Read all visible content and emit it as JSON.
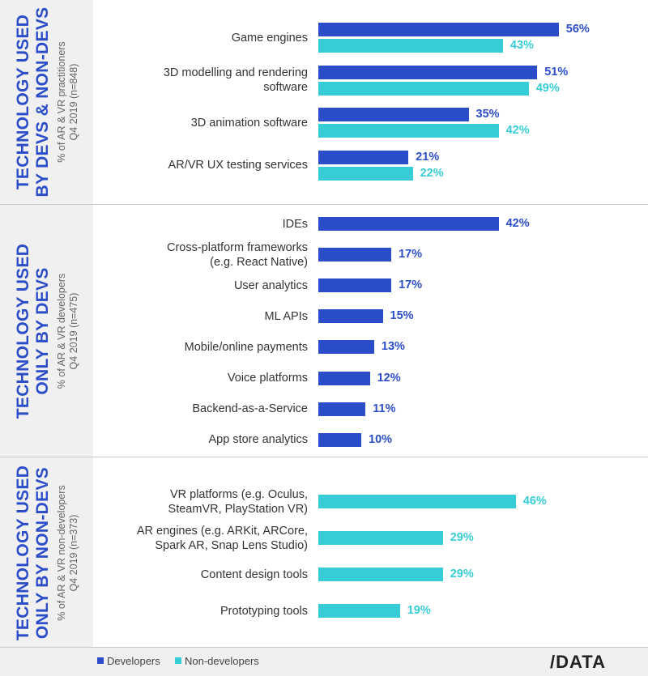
{
  "colors": {
    "developers": "#2c4dc8",
    "non_developers": "#36cdd6"
  },
  "panels": [
    {
      "title_line1": "TECHNOLOGY USED",
      "title_line2": "BY DEVS & NON-DEVS",
      "sub_line1": "% of AR & VR practitioners",
      "sub_line2": "Q4 2019 (n=848)"
    },
    {
      "title_line1": "TECHNOLOGY USED",
      "title_line2": "ONLY BY DEVS",
      "sub_line1": "% of AR & VR developers",
      "sub_line2": "Q4 2019 (n=475)"
    },
    {
      "title_line1": "TECHNOLOGY USED",
      "title_line2": "ONLY BY NON-DEVS",
      "sub_line1": "% of AR & VR non-developers",
      "sub_line2": "Q4 2019 (n=373)"
    }
  ],
  "legend": {
    "developers": "Developers",
    "non_developers": "Non-developers"
  },
  "logo": "/DATA",
  "chart_data": [
    {
      "type": "bar",
      "orientation": "horizontal",
      "title": "TECHNOLOGY USED BY DEVS & NON-DEVS",
      "categories": [
        "Game engines",
        "3D modelling and rendering software",
        "3D animation software",
        "AR/VR UX testing services"
      ],
      "series": [
        {
          "name": "Developers",
          "values": [
            56,
            51,
            35,
            21
          ],
          "labels": [
            "56%",
            "51%",
            "35%",
            "21%"
          ]
        },
        {
          "name": "Non-developers",
          "values": [
            43,
            49,
            42,
            22
          ],
          "labels": [
            "43%",
            "49%",
            "42%",
            "22%"
          ]
        }
      ]
    },
    {
      "type": "bar",
      "orientation": "horizontal",
      "title": "TECHNOLOGY USED ONLY BY DEVS",
      "categories": [
        "IDEs",
        "Cross-platform frameworks (e.g. React Native)",
        "User analytics",
        "ML APIs",
        "Mobile/online payments",
        "Voice platforms",
        "Backend-as-a-Service",
        "App store analytics"
      ],
      "series": [
        {
          "name": "Developers",
          "values": [
            42,
            17,
            17,
            15,
            13,
            12,
            11,
            10
          ],
          "labels": [
            "42%",
            "17%",
            "17%",
            "15%",
            "13%",
            "12%",
            "11%",
            "10%"
          ]
        }
      ]
    },
    {
      "type": "bar",
      "orientation": "horizontal",
      "title": "TECHNOLOGY USED ONLY BY NON-DEVS",
      "categories": [
        "VR platforms (e.g. Oculus, SteamVR, PlayStation VR)",
        "AR engines (e.g. ARKit, ARCore, Spark AR, Snap Lens Studio)",
        "Content design tools",
        "Prototyping tools"
      ],
      "series": [
        {
          "name": "Non-developers",
          "values": [
            46,
            29,
            29,
            19
          ],
          "labels": [
            "46%",
            "29%",
            "29%",
            "19%"
          ]
        }
      ]
    }
  ],
  "category_lines": [
    [
      [
        "Game engines"
      ],
      [
        "3D modelling and rendering",
        "software"
      ],
      [
        "3D animation software"
      ],
      [
        "AR/VR UX testing services"
      ]
    ],
    [
      [
        "IDEs"
      ],
      [
        "Cross-platform frameworks",
        "(e.g. React Native)"
      ],
      [
        "User analytics"
      ],
      [
        "ML APIs"
      ],
      [
        "Mobile/online payments"
      ],
      [
        "Voice platforms"
      ],
      [
        "Backend-as-a-Service"
      ],
      [
        "App store analytics"
      ]
    ],
    [
      [
        "VR platforms (e.g. Oculus,",
        "SteamVR, PlayStation VR)"
      ],
      [
        "AR engines (e.g. ARKit, ARCore,",
        "Spark AR, Snap Lens Studio)"
      ],
      [
        "Content design tools"
      ],
      [
        "Prototyping tools"
      ]
    ]
  ]
}
